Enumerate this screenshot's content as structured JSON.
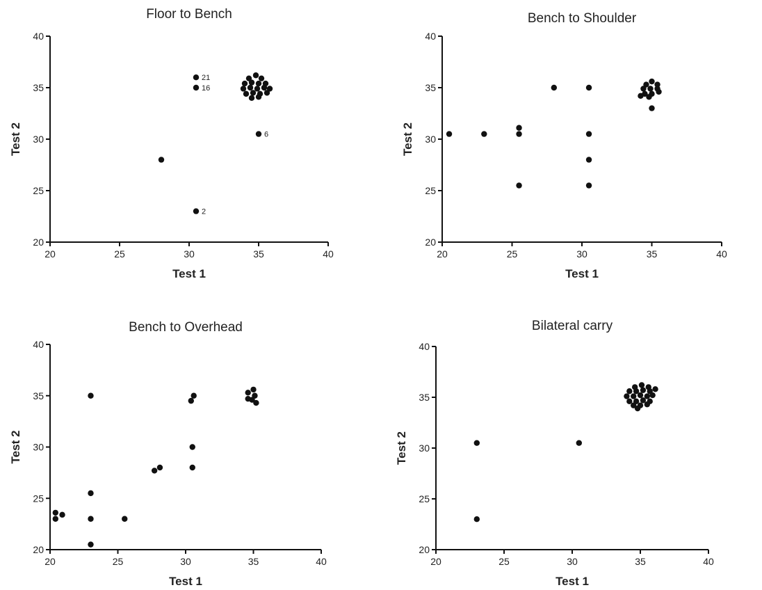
{
  "chart_data": [
    {
      "type": "scatter",
      "title": "Floor to Bench",
      "xlabel": "Test 1",
      "ylabel": "Test 2",
      "xlim": [
        20,
        40
      ],
      "ylim": [
        20,
        40
      ],
      "xticks": [
        "20",
        "25",
        "30",
        "35",
        "40"
      ],
      "yticks": [
        "20",
        "25",
        "30",
        "35",
        "40"
      ],
      "points": [
        {
          "x": 28,
          "y": 28
        },
        {
          "x": 30.5,
          "y": 36,
          "label": "21"
        },
        {
          "x": 30.5,
          "y": 35,
          "label": "16"
        },
        {
          "x": 30.5,
          "y": 23,
          "label": "2"
        },
        {
          "x": 35,
          "y": 30.5,
          "label": "6"
        },
        {
          "x": 34.3,
          "y": 35.9
        },
        {
          "x": 34.8,
          "y": 36.2
        },
        {
          "x": 35.2,
          "y": 35.9
        },
        {
          "x": 34.0,
          "y": 35.4
        },
        {
          "x": 34.5,
          "y": 35.5
        },
        {
          "x": 35.0,
          "y": 35.4
        },
        {
          "x": 35.5,
          "y": 35.4
        },
        {
          "x": 33.9,
          "y": 34.9
        },
        {
          "x": 34.4,
          "y": 35.0
        },
        {
          "x": 34.9,
          "y": 34.9
        },
        {
          "x": 35.4,
          "y": 35.0
        },
        {
          "x": 35.8,
          "y": 34.9
        },
        {
          "x": 34.1,
          "y": 34.4
        },
        {
          "x": 34.6,
          "y": 34.5
        },
        {
          "x": 35.1,
          "y": 34.4
        },
        {
          "x": 35.6,
          "y": 34.5
        },
        {
          "x": 34.5,
          "y": 34.0
        },
        {
          "x": 35.0,
          "y": 34.1
        }
      ]
    },
    {
      "type": "scatter",
      "title": "Bench to Shoulder",
      "xlabel": "Test 1",
      "ylabel": "Test 2",
      "xlim": [
        20,
        40
      ],
      "ylim": [
        20,
        40
      ],
      "xticks": [
        "20",
        "25",
        "30",
        "35",
        "40"
      ],
      "yticks": [
        "20",
        "25",
        "30",
        "35",
        "40"
      ],
      "points": [
        {
          "x": 20.5,
          "y": 30.5
        },
        {
          "x": 23,
          "y": 30.5
        },
        {
          "x": 25.5,
          "y": 31.1
        },
        {
          "x": 25.5,
          "y": 30.5
        },
        {
          "x": 25.5,
          "y": 25.5
        },
        {
          "x": 28,
          "y": 35
        },
        {
          "x": 30.5,
          "y": 35
        },
        {
          "x": 30.5,
          "y": 30.5
        },
        {
          "x": 30.5,
          "y": 28
        },
        {
          "x": 30.5,
          "y": 25.5
        },
        {
          "x": 35,
          "y": 33
        },
        {
          "x": 35.0,
          "y": 35.6
        },
        {
          "x": 34.6,
          "y": 35.3
        },
        {
          "x": 35.4,
          "y": 35.3
        },
        {
          "x": 34.4,
          "y": 34.9
        },
        {
          "x": 34.9,
          "y": 34.9
        },
        {
          "x": 35.4,
          "y": 34.9
        },
        {
          "x": 34.5,
          "y": 34.4
        },
        {
          "x": 35.0,
          "y": 34.4
        },
        {
          "x": 35.5,
          "y": 34.6
        },
        {
          "x": 34.2,
          "y": 34.2
        },
        {
          "x": 34.8,
          "y": 34.1
        }
      ]
    },
    {
      "type": "scatter",
      "title": "Bench to Overhead",
      "xlabel": "Test 1",
      "ylabel": "Test 2",
      "xlim": [
        20,
        40
      ],
      "ylim": [
        20,
        40
      ],
      "xticks": [
        "20",
        "25",
        "30",
        "35",
        "40"
      ],
      "yticks": [
        "20",
        "25",
        "30",
        "35",
        "40"
      ],
      "points": [
        {
          "x": 20.4,
          "y": 23
        },
        {
          "x": 20.4,
          "y": 23.6
        },
        {
          "x": 20.9,
          "y": 23.4
        },
        {
          "x": 23,
          "y": 35
        },
        {
          "x": 23,
          "y": 25.5
        },
        {
          "x": 23,
          "y": 23
        },
        {
          "x": 23,
          "y": 20.5
        },
        {
          "x": 25.5,
          "y": 23
        },
        {
          "x": 27.7,
          "y": 27.7
        },
        {
          "x": 28.1,
          "y": 28
        },
        {
          "x": 30.4,
          "y": 34.5
        },
        {
          "x": 30.6,
          "y": 35
        },
        {
          "x": 30.5,
          "y": 30
        },
        {
          "x": 30.5,
          "y": 28
        },
        {
          "x": 34.6,
          "y": 35.3
        },
        {
          "x": 35.0,
          "y": 35.6
        },
        {
          "x": 34.6,
          "y": 34.7
        },
        {
          "x": 35.1,
          "y": 35.0
        },
        {
          "x": 34.9,
          "y": 34.6
        },
        {
          "x": 35.2,
          "y": 34.3
        }
      ]
    },
    {
      "type": "scatter",
      "title": "Bilateral carry",
      "xlabel": "Test 1",
      "ylabel": "Test 2",
      "xlim": [
        20,
        40
      ],
      "ylim": [
        20,
        40
      ],
      "xticks": [
        "20",
        "25",
        "30",
        "35",
        "40"
      ],
      "yticks": [
        "20",
        "25",
        "30",
        "35",
        "40"
      ],
      "points": [
        {
          "x": 23,
          "y": 30.5
        },
        {
          "x": 23,
          "y": 23
        },
        {
          "x": 30.5,
          "y": 30.5
        },
        {
          "x": 34.6,
          "y": 36.0
        },
        {
          "x": 35.1,
          "y": 36.2
        },
        {
          "x": 35.6,
          "y": 36.0
        },
        {
          "x": 34.2,
          "y": 35.6
        },
        {
          "x": 34.7,
          "y": 35.6
        },
        {
          "x": 35.2,
          "y": 35.7
        },
        {
          "x": 35.7,
          "y": 35.6
        },
        {
          "x": 36.1,
          "y": 35.8
        },
        {
          "x": 34.0,
          "y": 35.1
        },
        {
          "x": 34.5,
          "y": 35.1
        },
        {
          "x": 35.0,
          "y": 35.2
        },
        {
          "x": 35.5,
          "y": 35.1
        },
        {
          "x": 35.9,
          "y": 35.2
        },
        {
          "x": 34.2,
          "y": 34.6
        },
        {
          "x": 34.7,
          "y": 34.6
        },
        {
          "x": 35.2,
          "y": 34.7
        },
        {
          "x": 35.7,
          "y": 34.6
        },
        {
          "x": 34.5,
          "y": 34.2
        },
        {
          "x": 35.0,
          "y": 34.2
        },
        {
          "x": 35.5,
          "y": 34.3
        },
        {
          "x": 34.8,
          "y": 33.9
        }
      ]
    }
  ]
}
